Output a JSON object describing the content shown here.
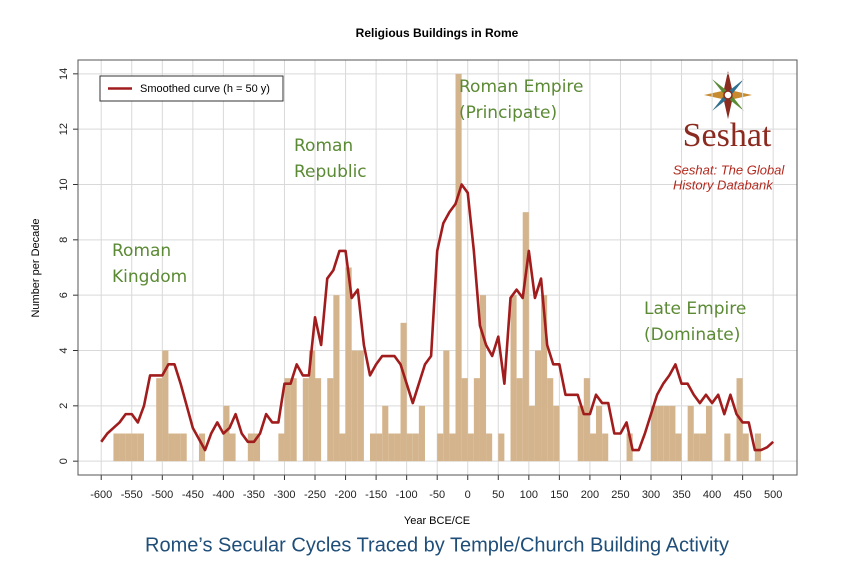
{
  "chart_data": {
    "type": "histogram",
    "title": "Religious Buildings in Rome",
    "x_label": "Year BCE/CE",
    "y_label": "Number per Decade",
    "caption": "Rome’s Secular Cycles Traced by Temple/Church Building Activity",
    "color": "#d4b48c",
    "bins": [
      -600,
      -590,
      -580,
      -570,
      -560,
      -550,
      -540,
      -530,
      -520,
      -510,
      -500,
      -490,
      -480,
      -470,
      -460,
      -450,
      -440,
      -430,
      -420,
      -410,
      -400,
      -390,
      -380,
      -370,
      -360,
      -350,
      -340,
      -330,
      -320,
      -310,
      -300,
      -290,
      -280,
      -270,
      -260,
      -250,
      -240,
      -230,
      -220,
      -210,
      -200,
      -190,
      -180,
      -170,
      -160,
      -150,
      -140,
      -130,
      -120,
      -110,
      -100,
      -90,
      -80,
      -70,
      -60,
      -50,
      -40,
      -30,
      -20,
      -10,
      0,
      10,
      20,
      30,
      40,
      50,
      60,
      70,
      80,
      90,
      100,
      110,
      120,
      130,
      140,
      150,
      160,
      170,
      180,
      190,
      200,
      210,
      220,
      230,
      240,
      250,
      260,
      270,
      280,
      290,
      300,
      310,
      320,
      330,
      340,
      350,
      360,
      370,
      380,
      390,
      400,
      410,
      420,
      430,
      440,
      450,
      460,
      470,
      480,
      490,
      500
    ],
    "values": [
      0,
      0,
      1,
      1,
      1,
      1,
      1,
      0,
      0,
      3,
      4,
      1,
      1,
      1,
      0,
      0,
      1,
      0,
      0,
      0,
      2,
      1,
      0,
      0,
      1,
      1,
      0,
      0,
      0,
      1,
      3,
      3,
      0,
      3,
      4,
      3,
      0,
      3,
      6,
      1,
      7,
      4,
      4,
      0,
      1,
      1,
      2,
      1,
      1,
      5,
      1,
      1,
      2,
      0,
      0,
      1,
      4,
      1,
      14,
      3,
      1,
      3,
      6,
      1,
      0,
      1,
      0,
      6,
      3,
      9,
      2,
      4,
      6,
      3,
      2,
      0,
      0,
      0,
      2,
      3,
      1,
      2,
      1,
      0,
      0,
      0,
      1,
      0,
      0,
      0,
      2,
      2,
      2,
      2,
      1,
      0,
      2,
      1,
      1,
      2,
      0,
      0,
      1,
      0,
      3,
      1,
      0,
      1,
      0,
      0
    ],
    "line": {
      "name": "Smoothed curve (h = 50 y)",
      "color": "#a11d1d",
      "x": [
        -600,
        -590,
        -580,
        -570,
        -560,
        -550,
        -540,
        -530,
        -520,
        -510,
        -500,
        -490,
        -480,
        -470,
        -460,
        -450,
        -440,
        -430,
        -420,
        -410,
        -400,
        -390,
        -380,
        -370,
        -360,
        -350,
        -340,
        -330,
        -320,
        -310,
        -300,
        -290,
        -280,
        -270,
        -260,
        -250,
        -240,
        -230,
        -220,
        -210,
        -200,
        -190,
        -180,
        -170,
        -160,
        -150,
        -140,
        -130,
        -120,
        -110,
        -100,
        -90,
        -80,
        -70,
        -60,
        -50,
        -40,
        -30,
        -20,
        -10,
        0,
        10,
        20,
        30,
        40,
        50,
        60,
        70,
        80,
        90,
        100,
        110,
        120,
        130,
        140,
        150,
        160,
        170,
        180,
        190,
        200,
        210,
        220,
        230,
        240,
        250,
        260,
        270,
        280,
        290,
        300,
        310,
        320,
        330,
        340,
        350,
        360,
        370,
        380,
        390,
        400,
        410,
        420,
        430,
        440,
        450,
        460,
        470,
        480,
        490,
        500
      ],
      "values": [
        0.7,
        1.0,
        1.2,
        1.4,
        1.7,
        1.7,
        1.4,
        2.0,
        3.1,
        3.1,
        3.1,
        3.5,
        3.5,
        2.8,
        2.0,
        1.2,
        0.8,
        0.4,
        1.0,
        1.4,
        1.0,
        1.2,
        1.7,
        1.0,
        0.7,
        0.7,
        1.0,
        1.7,
        1.4,
        1.4,
        2.8,
        2.8,
        3.5,
        3.1,
        3.1,
        5.2,
        4.2,
        6.6,
        6.9,
        7.6,
        7.6,
        5.9,
        6.2,
        4.2,
        3.1,
        3.5,
        3.8,
        3.8,
        3.8,
        3.5,
        2.8,
        2.1,
        2.8,
        3.5,
        3.8,
        7.6,
        8.6,
        9.0,
        9.3,
        10.0,
        9.7,
        7.6,
        4.9,
        4.2,
        3.8,
        4.5,
        2.8,
        5.9,
        6.2,
        5.9,
        7.6,
        5.9,
        6.6,
        4.2,
        3.5,
        3.5,
        2.4,
        2.4,
        2.4,
        1.7,
        1.7,
        2.4,
        2.1,
        2.1,
        1.0,
        1.0,
        1.4,
        0.4,
        0.4,
        1.0,
        1.7,
        2.4,
        2.8,
        3.1,
        3.5,
        2.8,
        2.8,
        2.4,
        2.1,
        2.4,
        2.1,
        2.4,
        1.7,
        2.4,
        1.7,
        1.4,
        1.4,
        0.4,
        0.4,
        0.5,
        0.7
      ]
    },
    "xlim": [
      -638,
      539
    ],
    "ylim": [
      -0.5,
      14.5
    ],
    "xticks": [
      -600,
      -550,
      -500,
      -450,
      -400,
      -350,
      -300,
      -250,
      -200,
      -150,
      -100,
      -50,
      0,
      50,
      100,
      150,
      200,
      250,
      300,
      350,
      400,
      450,
      500
    ],
    "yticks": [
      0,
      2,
      4,
      6,
      8,
      10,
      12,
      14
    ],
    "grid": true,
    "legend": "upper left",
    "annotations": [
      {
        "lines": [
          "Roman",
          "Kingdom"
        ]
      },
      {
        "lines": [
          "Roman",
          "Republic"
        ]
      },
      {
        "lines": [
          "Roman Empire",
          "(Principate)"
        ]
      },
      {
        "lines": [
          "Late Empire",
          "(Dominate)"
        ]
      }
    ],
    "logo": {
      "name": "Seshat",
      "subtitle": [
        "Seshat: The Global",
        "History Databank"
      ]
    }
  }
}
